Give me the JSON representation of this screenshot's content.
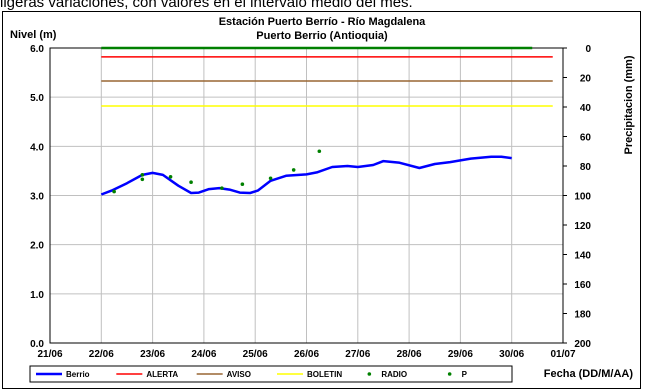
{
  "caption": "ligeras variaciones, con valores en el intervalo medio del mes.",
  "chart_data": {
    "type": "line",
    "title": "Estación Puerto Berrío - Río Magdalena",
    "subtitle": "Puerto Berrio (Antioquia)",
    "ylabel": "Nivel (m)",
    "y2label": "Precipitacion (mm)",
    "xlabel": "Fecha (DD/M/AA)",
    "ylim": [
      0,
      6
    ],
    "y2lim": [
      0,
      200
    ],
    "y2_inverted": true,
    "xlim": [
      "21/06",
      "01/07"
    ],
    "grid": true,
    "legend_position": "bottom",
    "x_ticks": [
      "21/06",
      "22/06",
      "23/06",
      "24/06",
      "25/06",
      "26/06",
      "27/06",
      "28/06",
      "29/06",
      "30/06",
      "01/07"
    ],
    "y_ticks": [
      "0.0",
      "1.0",
      "2.0",
      "3.0",
      "4.0",
      "5.0",
      "6.0"
    ],
    "y2_ticks": [
      "0",
      "20",
      "40",
      "60",
      "80",
      "100",
      "120",
      "140",
      "160",
      "180",
      "200"
    ],
    "series": [
      {
        "name": "Berrio",
        "kind": "line",
        "color": "#0000ff",
        "points": [
          [
            1.0,
            3.02
          ],
          [
            1.2,
            3.1
          ],
          [
            1.5,
            3.25
          ],
          [
            1.8,
            3.42
          ],
          [
            2.0,
            3.46
          ],
          [
            2.2,
            3.42
          ],
          [
            2.5,
            3.2
          ],
          [
            2.75,
            3.05
          ],
          [
            2.9,
            3.06
          ],
          [
            3.1,
            3.13
          ],
          [
            3.3,
            3.15
          ],
          [
            3.5,
            3.12
          ],
          [
            3.7,
            3.06
          ],
          [
            3.9,
            3.05
          ],
          [
            4.05,
            3.1
          ],
          [
            4.3,
            3.3
          ],
          [
            4.6,
            3.4
          ],
          [
            5.0,
            3.43
          ],
          [
            5.2,
            3.47
          ],
          [
            5.5,
            3.58
          ],
          [
            5.8,
            3.6
          ],
          [
            6.0,
            3.58
          ],
          [
            6.3,
            3.62
          ],
          [
            6.5,
            3.7
          ],
          [
            6.8,
            3.67
          ],
          [
            7.2,
            3.56
          ],
          [
            7.5,
            3.64
          ],
          [
            7.8,
            3.68
          ],
          [
            8.2,
            3.75
          ],
          [
            8.6,
            3.79
          ],
          [
            8.8,
            3.79
          ],
          [
            9.0,
            3.76
          ]
        ]
      },
      {
        "name": "ALERTA",
        "kind": "hline",
        "color": "#ff0000",
        "y": 5.82
      },
      {
        "name": "AVISO",
        "kind": "hline",
        "color": "#996633",
        "y": 5.33
      },
      {
        "name": "BOLETIN",
        "kind": "hline",
        "color": "#ffff00",
        "y": 4.82
      },
      {
        "name": "RADIO",
        "kind": "points",
        "color": "#008000",
        "points": [
          [
            1.25,
            3.08
          ],
          [
            1.8,
            3.42
          ],
          [
            2.75,
            3.27
          ],
          [
            3.75,
            3.23
          ],
          [
            4.75,
            3.52
          ],
          [
            5.25,
            3.9
          ]
        ]
      },
      {
        "name": "P",
        "kind": "points",
        "color": "#008000",
        "points": [
          [
            1.8,
            3.33
          ],
          [
            2.35,
            3.38
          ],
          [
            3.35,
            3.15
          ],
          [
            4.3,
            3.35
          ]
        ]
      },
      {
        "name": "",
        "kind": "hline",
        "color": "#008000",
        "y": 6.0,
        "x_start": 1.0,
        "x_end": 9.4
      }
    ]
  }
}
